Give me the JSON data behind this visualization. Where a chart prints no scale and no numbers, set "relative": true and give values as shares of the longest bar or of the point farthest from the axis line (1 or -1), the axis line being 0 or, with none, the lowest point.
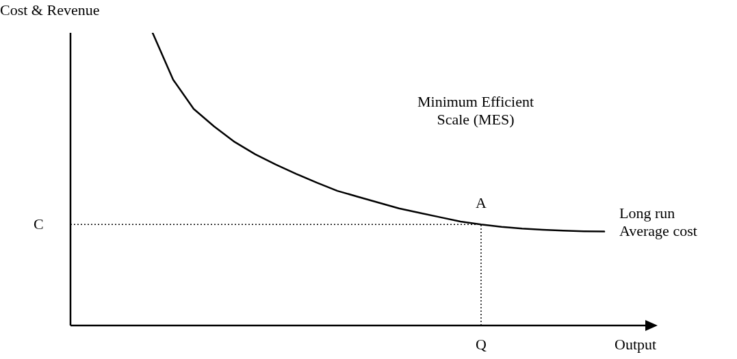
{
  "chart_data": {
    "type": "line",
    "relative": true,
    "ylabel": "Cost & Revenue",
    "xlabel": "Output",
    "categories": [
      null,
      null,
      null,
      null,
      null,
      null,
      null,
      null,
      null,
      null,
      null,
      null,
      null,
      null,
      null,
      null,
      null,
      null,
      null,
      null,
      null,
      null,
      null,
      null,
      null,
      null,
      null,
      null,
      null
    ],
    "series": [
      {
        "name": "Long run Average cost",
        "color": "#000000",
        "values": [
          null,
          null,
          null,
          null,
          1,
          0.84,
          0.74,
          0.68,
          0.627,
          0.585,
          0.55,
          0.518,
          0.488,
          0.46,
          0.44,
          0.42,
          0.4,
          0.385,
          0.37,
          0.355,
          0.345,
          0.337,
          0.331,
          0.327,
          0.324,
          0.322,
          0.321,
          null,
          null
        ]
      }
    ],
    "ref_lines": [
      {
        "axis": "y",
        "value": 0.345,
        "label": "C",
        "line_style": "dotted",
        "color": "#000000"
      }
    ],
    "annotations": [
      {
        "text": "A",
        "y": 0.345
      },
      "Minimum Efficient Scale (MES)",
      "Q"
    ],
    "line_style": "solid"
  }
}
